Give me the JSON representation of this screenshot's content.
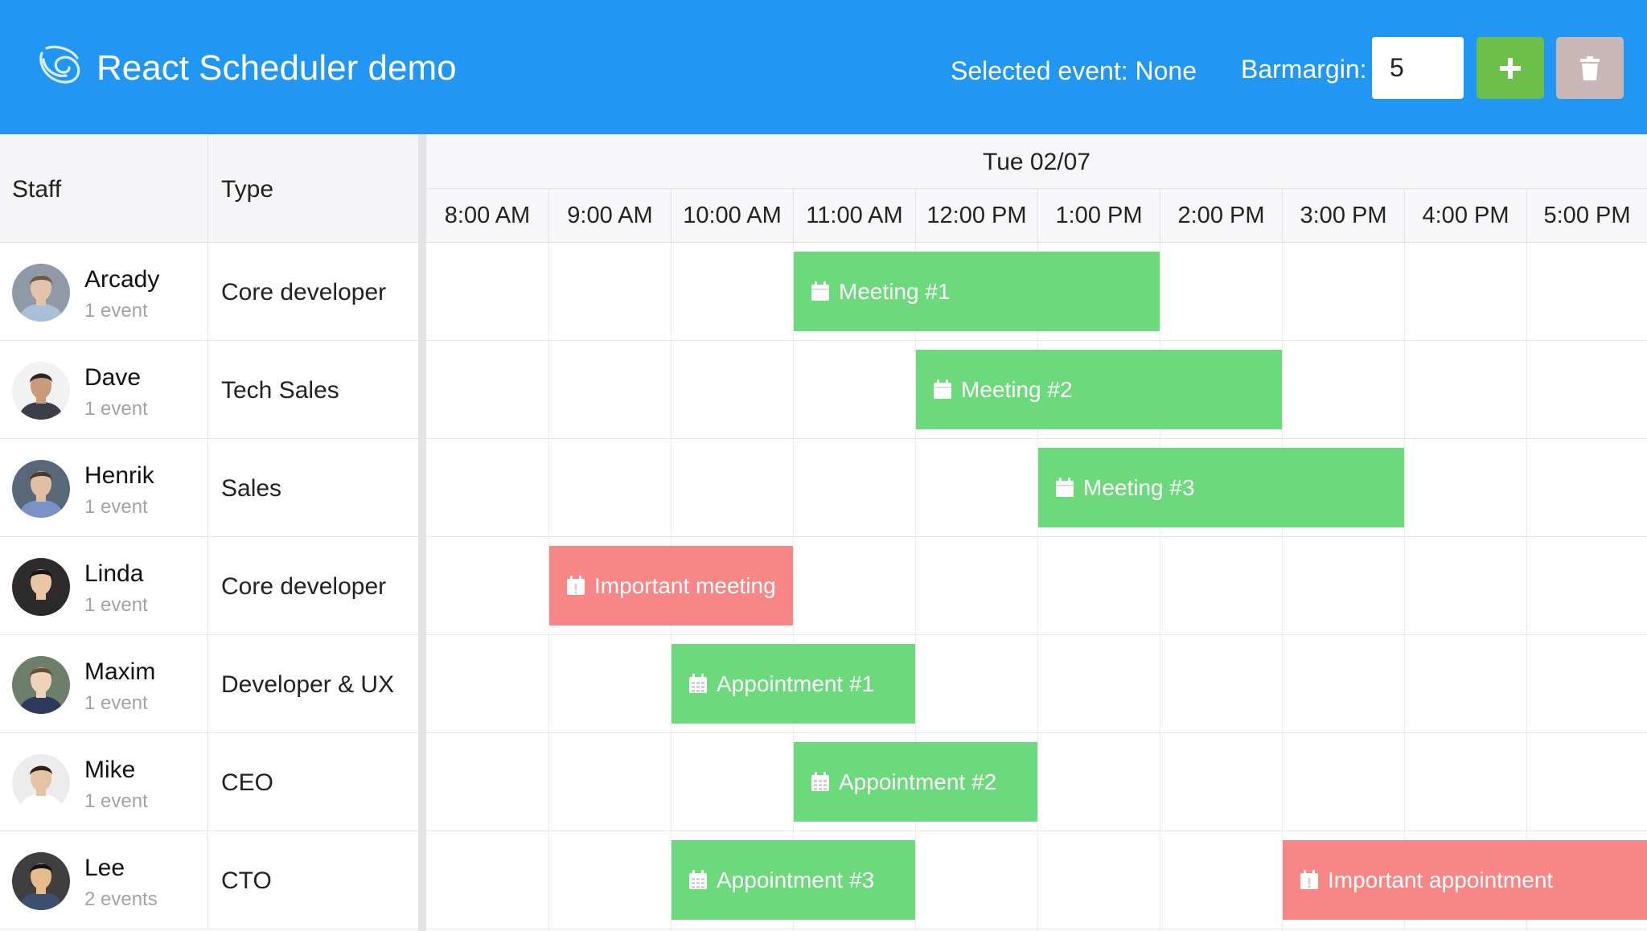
{
  "header": {
    "title": "React Scheduler demo",
    "selected_event": "Selected event: None",
    "barmargin_label": "Barmargin:",
    "barmargin_value": "5",
    "colors": {
      "background": "#2196F3",
      "add_button": "#6cc04a",
      "delete_button": "#c9b7b8"
    },
    "icons": {
      "logo": "spiral-logo-icon",
      "add": "plus-icon",
      "delete": "trash-icon"
    }
  },
  "columns": {
    "staff": "Staff",
    "type": "Type"
  },
  "scheduler": {
    "date": "Tue 02/07",
    "hours": [
      "8:00 AM",
      "9:00 AM",
      "10:00 AM",
      "11:00 AM",
      "12:00 PM",
      "1:00 PM",
      "2:00 PM",
      "3:00 PM",
      "4:00 PM",
      "5:00 PM"
    ]
  },
  "staff": [
    {
      "name": "Arcady",
      "count": "1 event",
      "type": "Core developer"
    },
    {
      "name": "Dave",
      "count": "1 event",
      "type": "Tech Sales"
    },
    {
      "name": "Henrik",
      "count": "1 event",
      "type": "Sales"
    },
    {
      "name": "Linda",
      "count": "1 event",
      "type": "Core developer"
    },
    {
      "name": "Maxim",
      "count": "1 event",
      "type": "Developer & UX"
    },
    {
      "name": "Mike",
      "count": "1 event",
      "type": "CEO"
    },
    {
      "name": "Lee",
      "count": "2 events",
      "type": "CTO"
    }
  ],
  "events": [
    {
      "title": "Meeting #1",
      "row": 0,
      "start": 3,
      "end": 6,
      "color": "#6cda7c",
      "icon": "calendar-icon"
    },
    {
      "title": "Meeting #2",
      "row": 1,
      "start": 4,
      "end": 7,
      "color": "#6cda7c",
      "icon": "calendar-icon"
    },
    {
      "title": "Meeting #3",
      "row": 2,
      "start": 5,
      "end": 8,
      "color": "#6cda7c",
      "icon": "calendar-icon"
    },
    {
      "title": "Important meeting",
      "row": 3,
      "start": 1,
      "end": 3,
      "color": "#f98686",
      "icon": "calendar-exclamation-icon"
    },
    {
      "title": "Appointment #1",
      "row": 4,
      "start": 2,
      "end": 4,
      "color": "#6cda7c",
      "icon": "calendar-grid-icon"
    },
    {
      "title": "Appointment #2",
      "row": 5,
      "start": 3,
      "end": 5,
      "color": "#6cda7c",
      "icon": "calendar-grid-icon"
    },
    {
      "title": "Appointment #3",
      "row": 6,
      "start": 2,
      "end": 4,
      "color": "#6cda7c",
      "icon": "calendar-grid-icon"
    },
    {
      "title": "Important appointment",
      "row": 6,
      "start": 7,
      "end": 10,
      "color": "#f98686",
      "icon": "calendar-exclamation-icon"
    }
  ]
}
